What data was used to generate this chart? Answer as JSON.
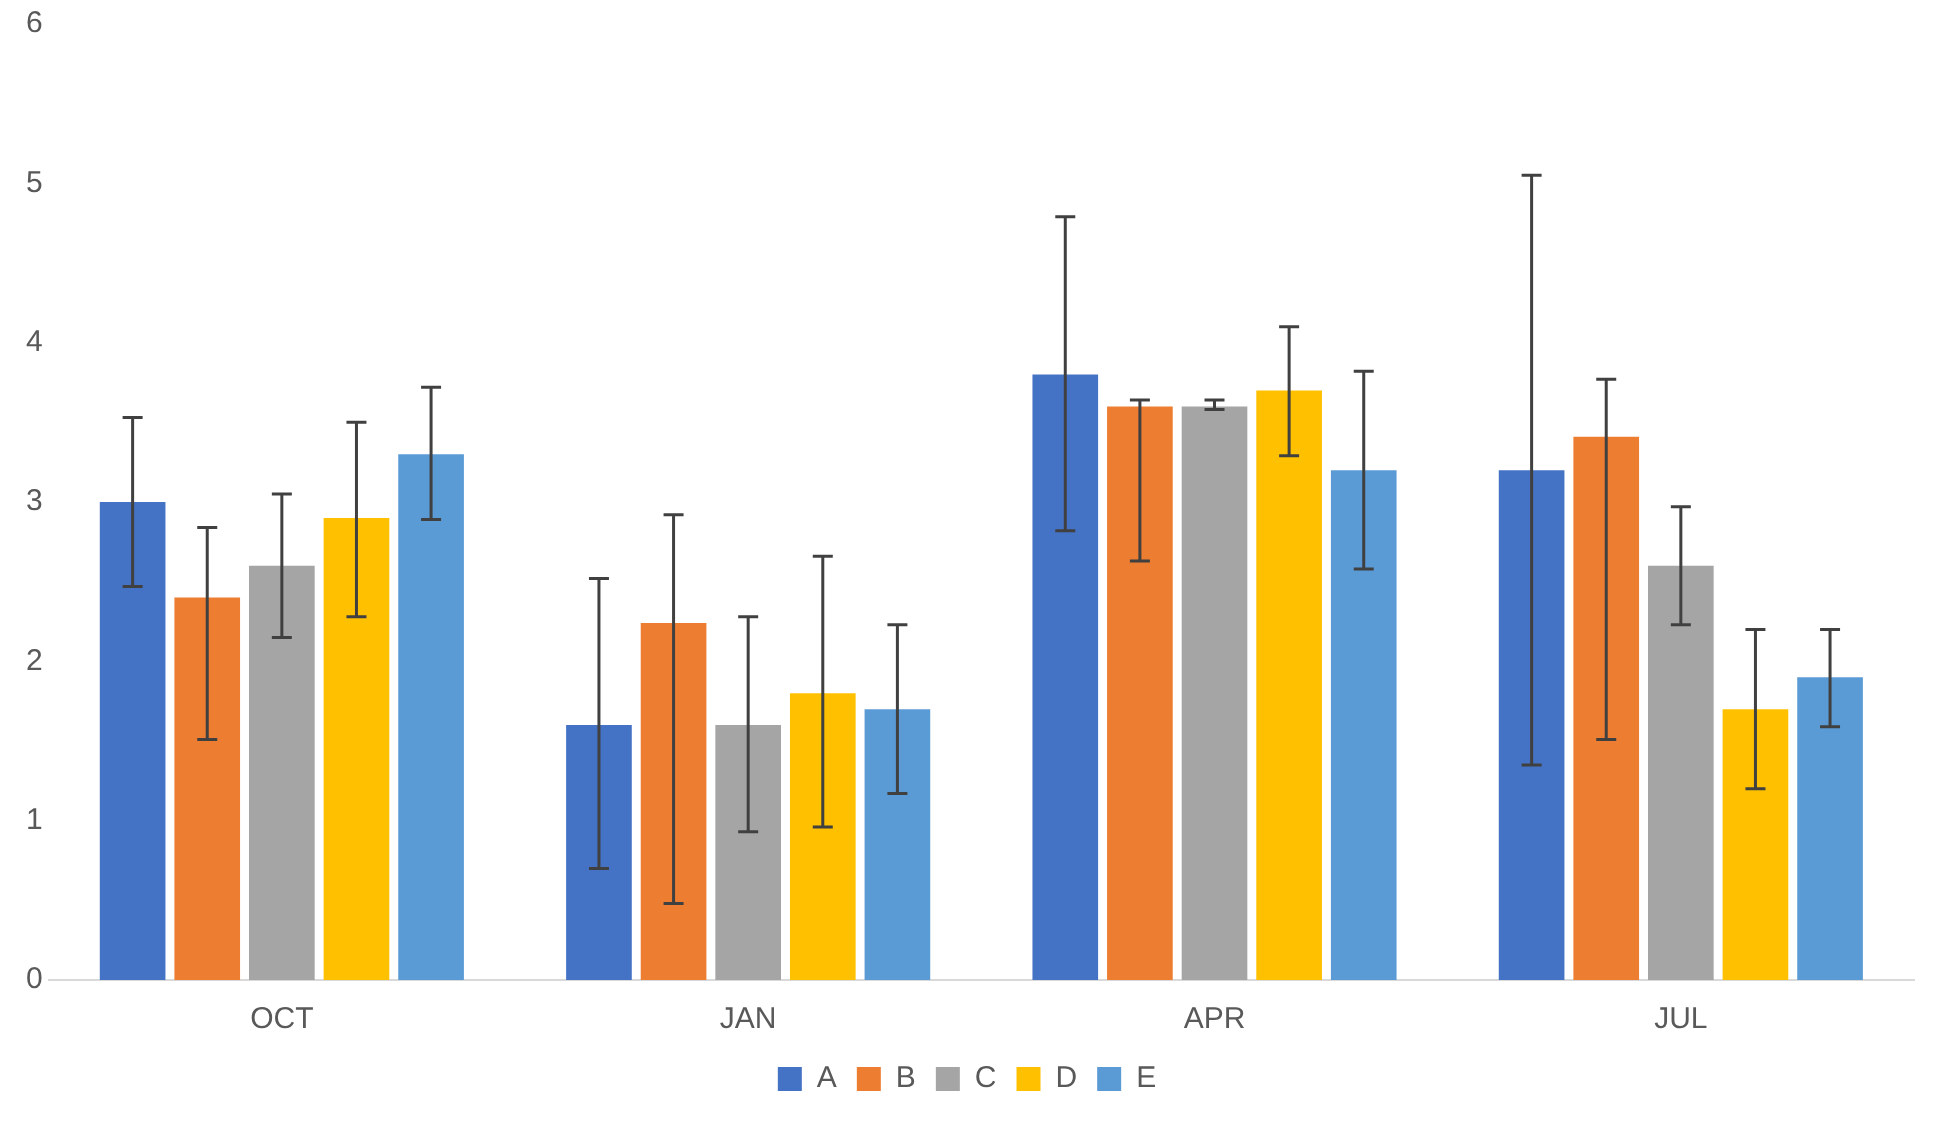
{
  "chart_data": {
    "type": "bar",
    "categories": [
      "OCT",
      "JAN",
      "APR",
      "JUL"
    ],
    "ylim": [
      0,
      6
    ],
    "yticks": [
      0,
      1,
      2,
      3,
      4,
      5,
      6
    ],
    "grid": false,
    "legend": "bottom",
    "series": [
      {
        "name": "A",
        "color": "#4472c4",
        "values": [
          3.0,
          1.6,
          3.8,
          3.2
        ],
        "errors": [
          [
            2.47,
            3.53
          ],
          [
            0.7,
            2.52
          ],
          [
            2.82,
            4.79
          ],
          [
            1.35,
            5.05
          ]
        ]
      },
      {
        "name": "B",
        "color": "#ed7d31",
        "values": [
          2.4,
          2.24,
          3.6,
          3.41
        ],
        "errors": [
          [
            1.51,
            2.84
          ],
          [
            0.48,
            2.92
          ],
          [
            2.63,
            3.64
          ],
          [
            1.51,
            3.77
          ]
        ]
      },
      {
        "name": "C",
        "color": "#a5a5a5",
        "values": [
          2.6,
          1.6,
          3.6,
          2.6
        ],
        "errors": [
          [
            2.15,
            3.05
          ],
          [
            0.93,
            2.28
          ],
          [
            3.58,
            3.64
          ],
          [
            2.23,
            2.97
          ]
        ]
      },
      {
        "name": "D",
        "color": "#ffc000",
        "values": [
          2.9,
          1.8,
          3.7,
          1.7
        ],
        "errors": [
          [
            2.28,
            3.5
          ],
          [
            0.96,
            2.66
          ],
          [
            3.29,
            4.1
          ],
          [
            1.2,
            2.2
          ]
        ]
      },
      {
        "name": "E",
        "color": "#5b9bd5",
        "values": [
          3.3,
          1.7,
          3.2,
          1.9
        ],
        "errors": [
          [
            2.89,
            3.72
          ],
          [
            1.17,
            2.23
          ],
          [
            2.58,
            3.82
          ],
          [
            1.59,
            2.2
          ]
        ]
      }
    ]
  }
}
